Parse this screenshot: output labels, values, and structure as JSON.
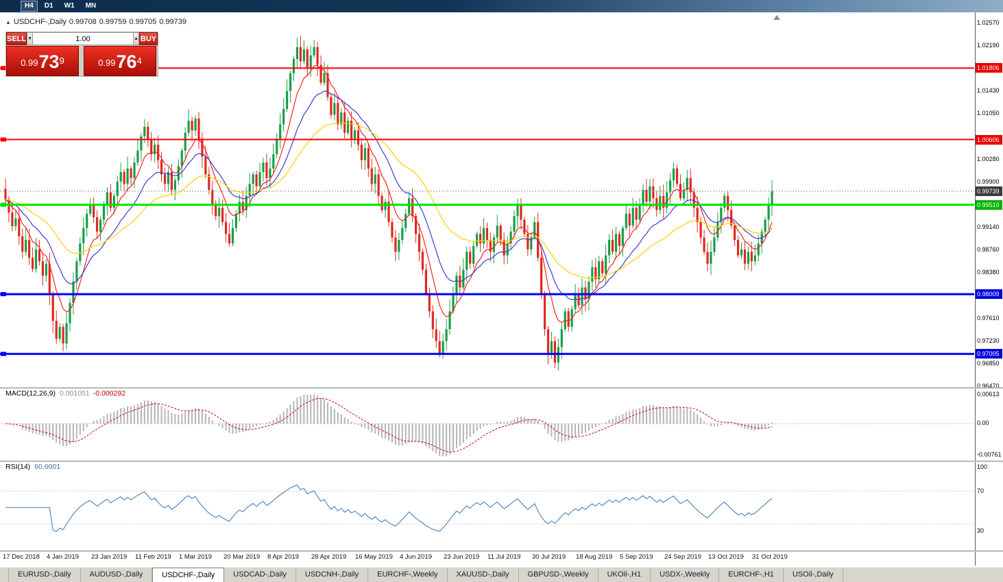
{
  "toolbar": {
    "timeframes": [
      "H4",
      "D1",
      "W1",
      "MN"
    ],
    "active": "H4"
  },
  "chart_header": {
    "symbol": "USDCHF-,Daily",
    "open": "0.99708",
    "high": "0.99759",
    "low": "0.99705",
    "close": "0.99739"
  },
  "trade_panel": {
    "sell_label": "SELL",
    "buy_label": "BUY",
    "volume": "1.00",
    "sell_price": {
      "big": "0.99",
      "mid": "73",
      "sup": "9"
    },
    "buy_price": {
      "big": "0.99",
      "mid": "76",
      "sup": "4"
    }
  },
  "price_axis": {
    "ticks": [
      "1.02570",
      "1.02190",
      "1.01430",
      "1.01050",
      "1.00280",
      "0.99900",
      "0.99140",
      "0.98760",
      "0.98380",
      "0.97610",
      "0.97230",
      "0.96850",
      "0.96470"
    ],
    "badges": [
      {
        "value": "1.01806",
        "price": 1.01806,
        "bg": "#e80000"
      },
      {
        "value": "1.00606",
        "price": 1.00606,
        "bg": "#e80000"
      },
      {
        "value": "0.99739",
        "price": 0.99739,
        "bg": "#3c3c3c"
      },
      {
        "value": "0.99510",
        "price": 0.9951,
        "bg": "#00b400"
      },
      {
        "value": "0.98009",
        "price": 0.98009,
        "bg": "#0000e0"
      },
      {
        "value": "0.97005",
        "price": 0.97005,
        "bg": "#0000e0"
      }
    ]
  },
  "indicators": {
    "macd": {
      "label": "MACD(12,26,9)",
      "value1": "0.001051",
      "value2": "-0.000292",
      "axis_labels": [
        "0.00613",
        "0.00",
        "-0.00761"
      ]
    },
    "rsi": {
      "label": "RSI(14)",
      "value": "60.6001",
      "axis_labels": [
        "100",
        "70",
        "30"
      ]
    }
  },
  "x_axis": {
    "dates": [
      "17 Dec 2018",
      "4 Jan 2019",
      "23 Jan 2019",
      "11 Feb 2019",
      "1 Mar 2019",
      "20 Mar 2019",
      "8 Apr 2019",
      "28 Apr 2019",
      "16 May 2019",
      "4 Jun 2019",
      "23 Jun 2019",
      "11 Jul 2019",
      "30 Jul 2019",
      "18 Aug 2019",
      "5 Sep 2019",
      "24 Sep 2019",
      "13 Oct 2019",
      "31 Oct 2019"
    ]
  },
  "tabs": {
    "active_index": 2,
    "items": [
      "EURUSD-,Daily",
      "AUDUSD-,Daily",
      "USDCHF-,Daily",
      "USDCAD-,Daily",
      "USDCNH-,Daily",
      "EURCHF-,Weekly",
      "XAUUSD-,Daily",
      "GBPUSD-,Weekly",
      "UKOil-,H1",
      "USDX-,Weekly",
      "EURCHF-,H1",
      "USOil-,Daily"
    ]
  },
  "chart_data": {
    "type": "candlestick",
    "symbol": "USDCHF",
    "timeframe": "Daily",
    "title": "USDCHF-,Daily",
    "current_bar": {
      "open": 0.99708,
      "high": 0.99759,
      "low": 0.99705,
      "close": 0.99739
    },
    "y_axis": {
      "top": 1.0257,
      "tick_step": 0.0038,
      "bottom": 0.9647
    },
    "x_labels": [
      "17 Dec 2018",
      "4 Jan 2019",
      "23 Jan 2019",
      "11 Feb 2019",
      "1 Mar 2019",
      "20 Mar 2019",
      "8 Apr 2019",
      "28 Apr 2019",
      "16 May 2019",
      "4 Jun 2019",
      "23 Jun 2019",
      "11 Jul 2019",
      "30 Jul 2019",
      "18 Aug 2019",
      "5 Sep 2019",
      "24 Sep 2019",
      "13 Oct 2019",
      "31 Oct 2019"
    ],
    "bars_per_label": 13,
    "first_open": 0.9978,
    "closes": [
      0.996,
      0.9938,
      0.9915,
      0.9928,
      0.9898,
      0.9872,
      0.9892,
      0.9862,
      0.9843,
      0.9876,
      0.9856,
      0.9832,
      0.9852,
      0.98,
      0.9756,
      0.9726,
      0.9746,
      0.9718,
      0.9752,
      0.9786,
      0.9822,
      0.9856,
      0.9886,
      0.9912,
      0.9936,
      0.995,
      0.993,
      0.9906,
      0.9926,
      0.9952,
      0.9972,
      0.9946,
      0.9966,
      0.999,
      1.0006,
      0.9986,
      1.0012,
      0.9996,
      1.0022,
      1.0042,
      1.0066,
      1.0082,
      1.006,
      1.0036,
      1.0052,
      1.0026,
      1.0002,
      0.9986,
      1.0006,
      0.9976,
      0.9992,
      1.0016,
      1.0042,
      1.0072,
      1.0092,
      1.0076,
      1.0096,
      1.0062,
      1.0032,
      1.0002,
      0.9976,
      0.9952,
      0.9932,
      0.9946,
      0.9922,
      0.9902,
      0.9886,
      0.9912,
      0.9936,
      0.9956,
      0.9942,
      0.9966,
      0.9986,
      1.0002,
      0.9982,
      1.0006,
      1.0022,
      0.9996,
      1.0012,
      1.0036,
      1.0062,
      1.0086,
      1.0112,
      1.0142,
      1.0172,
      1.0196,
      1.0216,
      1.0192,
      1.0212,
      1.0182,
      1.0202,
      1.0216,
      1.0186,
      1.0156,
      1.0172,
      1.0132,
      1.0102,
      1.0122,
      1.0086,
      1.0106,
      1.0072,
      1.0092,
      1.0062,
      1.0076,
      1.0052,
      1.0026,
      1.0046,
      1.0012,
      0.9986,
      1.0002,
      0.9966,
      0.9942,
      0.9956,
      0.9922,
      0.9896,
      0.9872,
      0.9892,
      0.9912,
      0.9936,
      0.9962,
      0.9932,
      0.9902,
      0.9872,
      0.9842,
      0.9802,
      0.9772,
      0.9742,
      0.9722,
      0.9702,
      0.9722,
      0.9742,
      0.9772,
      0.9802,
      0.9832,
      0.9812,
      0.9842,
      0.9872,
      0.9852,
      0.9882,
      0.9902,
      0.9886,
      0.9912,
      0.9892,
      0.9872,
      0.9896,
      0.9916,
      0.9892,
      0.9866,
      0.9886,
      0.9906,
      0.9932,
      0.9952,
      0.9926,
      0.9902,
      0.9876,
      0.9896,
      0.9922,
      0.9862,
      0.9802,
      0.9742,
      0.9702,
      0.9722,
      0.9686,
      0.9712,
      0.9742,
      0.9772,
      0.9746,
      0.9776,
      0.9802,
      0.9782,
      0.9812,
      0.9792,
      0.9822,
      0.9846,
      0.9826,
      0.9856,
      0.9836,
      0.9866,
      0.9892,
      0.9872,
      0.9902,
      0.9882,
      0.9912,
      0.9936,
      0.9916,
      0.9946,
      0.9926,
      0.9952,
      0.9976,
      0.9956,
      0.9982,
      0.9962,
      0.9942,
      0.9966,
      0.9946,
      0.9972,
      0.9992,
      1.0012,
      0.9986,
      0.9962,
      0.9976,
      0.9996,
      0.9972,
      0.9946,
      0.9922,
      0.9896,
      0.9872,
      0.9852,
      0.9872,
      0.9896,
      0.9922,
      0.9946,
      0.9966,
      0.9942,
      0.9916,
      0.9892,
      0.9866,
      0.9876,
      0.9852,
      0.9872,
      0.9856,
      0.9866,
      0.9886,
      0.9906,
      0.9926,
      0.9952,
      0.9974
    ],
    "levels": [
      {
        "price": 1.01806,
        "color": "#ff0000",
        "width": 2
      },
      {
        "price": 1.00606,
        "color": "#ff0000",
        "width": 2
      },
      {
        "price": 0.9951,
        "color": "#00e400",
        "width": 3
      },
      {
        "price": 0.98009,
        "color": "#0000ff",
        "width": 3
      },
      {
        "price": 0.97005,
        "color": "#0000ff",
        "width": 3
      }
    ],
    "current_price_line": 0.99739,
    "moving_averages": [
      {
        "name": "fast",
        "period": 8,
        "color": "#ff2020"
      },
      {
        "name": "mid",
        "period": 18,
        "color": "#3b3bd0"
      },
      {
        "name": "slow",
        "period": 40,
        "color": "#ffd000"
      }
    ],
    "macd": {
      "fast": 12,
      "slow": 26,
      "signal": 9,
      "value": 0.001051,
      "signal_value": -0.000292,
      "axis_max": 0.00613,
      "axis_min": -0.00761,
      "hist_color": "#b4b4b4",
      "signal_color": "#cc0000"
    },
    "rsi": {
      "period": 14,
      "value": 60.6001,
      "levels": [
        70,
        30
      ],
      "color": "#4a7fb5"
    },
    "candle_colors": {
      "up": "#179e48",
      "down": "#e0281e"
    }
  }
}
